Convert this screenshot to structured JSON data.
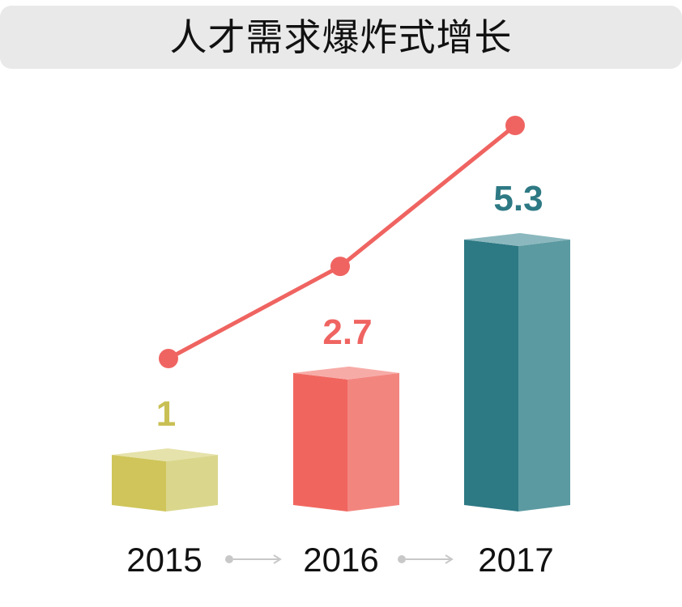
{
  "title": "人才需求爆炸式增长",
  "colors": {
    "title_bg": "#e9e9e9",
    "line": "#ef6461",
    "connector": "#c8c8c8"
  },
  "chart_data": {
    "type": "bar",
    "title": "人才需求爆炸式增长",
    "categories": [
      "2015",
      "2016",
      "2017"
    ],
    "values": [
      1,
      2.7,
      5.3
    ],
    "data_labels": [
      "1",
      "2.7",
      "5.3"
    ],
    "bar_colors": [
      {
        "front": "#cfc55a",
        "side": "#dad78d",
        "top": "#e6e2ab",
        "label": "#c9c055"
      },
      {
        "front": "#f0665f",
        "side": "#f3857f",
        "top": "#f7aba7",
        "label": "#ef6461"
      },
      {
        "front": "#2d7984",
        "side": "#5b9aa1",
        "top": "#8bb8be",
        "label": "#2d7984"
      }
    ],
    "line_series": {
      "values": [
        1,
        2.7,
        5.3
      ],
      "color": "#ef6461"
    },
    "ylim": [
      0,
      5.3
    ],
    "grid": false,
    "legend": "none",
    "xlabel": "",
    "ylabel": ""
  }
}
